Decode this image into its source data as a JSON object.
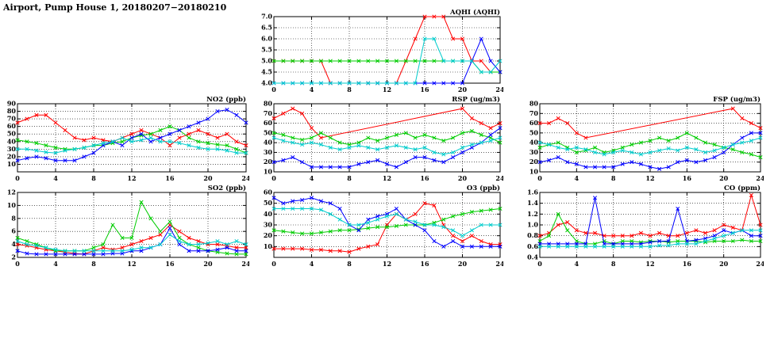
{
  "page": {
    "title": "Airport, Pump House 1, 20180207−20180210"
  },
  "colors": {
    "red": "#ff0000",
    "green": "#00cc00",
    "blue": "#0000ff",
    "cyan": "#00cccc"
  },
  "chart_data": [
    {
      "id": "aqhi",
      "title": "AQHI (AQHI)",
      "type": "line",
      "xlim": [
        0,
        24
      ],
      "xticks": [
        0,
        4,
        8,
        12,
        16,
        20,
        24
      ],
      "ylim": [
        4,
        7
      ],
      "yticks": [
        4,
        4.5,
        5,
        5.5,
        6,
        6.5,
        7
      ],
      "ydec": 1,
      "series": [
        {
          "name": "red",
          "color": "#ff0000",
          "values": [
            5,
            5,
            5,
            5,
            5,
            5,
            4,
            4,
            4,
            4,
            4,
            4,
            4,
            4,
            5,
            6,
            7,
            7,
            7,
            6,
            6,
            5,
            5,
            4.5,
            4.5
          ]
        },
        {
          "name": "green",
          "color": "#00cc00",
          "values": [
            5,
            5,
            5,
            5,
            5,
            5,
            5,
            5,
            5,
            5,
            5,
            5,
            5,
            5,
            5,
            5,
            5,
            5,
            5,
            5,
            5,
            5,
            4.5,
            4.5,
            4.5
          ]
        },
        {
          "name": "blue",
          "color": "#0000ff",
          "values": [
            4,
            4,
            4,
            4,
            4,
            4,
            4,
            4,
            4,
            4,
            4,
            4,
            4,
            4,
            4,
            4,
            4,
            4,
            4,
            4,
            4,
            5,
            6,
            5,
            4.5
          ]
        },
        {
          "name": "cyan",
          "color": "#00cccc",
          "values": [
            4,
            4,
            4,
            4,
            4,
            4,
            4,
            4,
            4,
            4,
            4,
            4,
            4,
            4,
            4,
            4,
            6,
            6,
            5,
            5,
            5,
            5,
            4.5,
            4.5,
            5
          ]
        }
      ]
    },
    {
      "id": "no2",
      "title": "NO2 (ppb)",
      "type": "line",
      "xlim": [
        0,
        24
      ],
      "xticks": [
        0,
        4,
        8,
        12,
        16,
        20,
        24
      ],
      "ylim": [
        0,
        90
      ],
      "yticks": [
        10,
        20,
        30,
        40,
        50,
        60,
        70,
        80,
        90
      ],
      "ydec": 0,
      "series": [
        {
          "name": "red",
          "color": "#ff0000",
          "values": [
            65,
            70,
            75,
            75,
            65,
            55,
            45,
            42,
            45,
            42,
            40,
            45,
            50,
            55,
            50,
            45,
            35,
            45,
            50,
            55,
            50,
            45,
            50,
            40,
            35
          ]
        },
        {
          "name": "green",
          "color": "#00cc00",
          "values": [
            42,
            40,
            38,
            35,
            32,
            30,
            30,
            32,
            35,
            35,
            38,
            40,
            45,
            48,
            50,
            55,
            60,
            55,
            45,
            40,
            38,
            36,
            35,
            30,
            25
          ]
        },
        {
          "name": "blue",
          "color": "#0000ff",
          "values": [
            15,
            18,
            20,
            18,
            15,
            15,
            15,
            20,
            25,
            35,
            40,
            35,
            45,
            50,
            40,
            45,
            50,
            55,
            60,
            65,
            70,
            80,
            82,
            75,
            65
          ]
        },
        {
          "name": "cyan",
          "color": "#00cccc",
          "values": [
            30,
            30,
            28,
            26,
            25,
            28,
            30,
            32,
            35,
            38,
            40,
            45,
            40,
            42,
            45,
            40,
            40,
            38,
            35,
            32,
            30,
            30,
            28,
            25,
            25
          ]
        }
      ]
    },
    {
      "id": "rsp",
      "title": "RSP (ug/m3)",
      "type": "line",
      "xlim": [
        0,
        24
      ],
      "xticks": [
        0,
        4,
        8,
        12,
        16,
        20,
        24
      ],
      "ylim": [
        10,
        80
      ],
      "yticks": [
        10,
        20,
        30,
        40,
        50,
        60,
        70,
        80
      ],
      "ydec": 0,
      "series": [
        {
          "name": "red",
          "color": "#ff0000",
          "values": [
            65,
            70,
            75,
            70,
            55,
            45,
            null,
            null,
            null,
            null,
            null,
            null,
            null,
            null,
            null,
            null,
            null,
            null,
            null,
            null,
            75,
            65,
            60,
            55,
            60
          ]
        },
        {
          "name": "green",
          "color": "#00cc00",
          "values": [
            50,
            48,
            45,
            43,
            45,
            50,
            45,
            40,
            38,
            40,
            45,
            42,
            45,
            48,
            50,
            45,
            48,
            45,
            42,
            45,
            50,
            52,
            48,
            45,
            40
          ]
        },
        {
          "name": "blue",
          "color": "#0000ff",
          "values": [
            20,
            22,
            25,
            20,
            15,
            15,
            15,
            15,
            15,
            18,
            20,
            22,
            18,
            15,
            20,
            25,
            25,
            22,
            20,
            25,
            30,
            35,
            40,
            48,
            55
          ]
        },
        {
          "name": "cyan",
          "color": "#00cccc",
          "values": [
            45,
            42,
            40,
            38,
            40,
            38,
            35,
            33,
            35,
            37,
            35,
            33,
            35,
            37,
            35,
            33,
            35,
            30,
            28,
            30,
            35,
            38,
            40,
            42,
            45
          ]
        }
      ]
    },
    {
      "id": "fsp",
      "title": "FSP (ug/m3)",
      "type": "line",
      "xlim": [
        0,
        24
      ],
      "xticks": [
        0,
        4,
        8,
        12,
        16,
        20,
        24
      ],
      "ylim": [
        10,
        80
      ],
      "yticks": [
        10,
        20,
        30,
        40,
        50,
        60,
        70,
        80
      ],
      "ydec": 0,
      "series": [
        {
          "name": "red",
          "color": "#ff0000",
          "values": [
            60,
            60,
            65,
            60,
            50,
            45,
            null,
            null,
            null,
            null,
            null,
            null,
            null,
            null,
            null,
            null,
            null,
            null,
            null,
            null,
            null,
            75,
            65,
            60,
            55
          ]
        },
        {
          "name": "green",
          "color": "#00cc00",
          "values": [
            35,
            38,
            40,
            35,
            30,
            32,
            35,
            30,
            32,
            35,
            38,
            40,
            42,
            45,
            42,
            45,
            50,
            45,
            40,
            38,
            35,
            33,
            30,
            28,
            25
          ]
        },
        {
          "name": "blue",
          "color": "#0000ff",
          "values": [
            20,
            22,
            25,
            20,
            18,
            15,
            15,
            15,
            15,
            18,
            20,
            18,
            15,
            13,
            15,
            20,
            22,
            20,
            22,
            25,
            30,
            38,
            45,
            50,
            50
          ]
        },
        {
          "name": "cyan",
          "color": "#00cccc",
          "values": [
            40,
            38,
            35,
            33,
            35,
            33,
            30,
            28,
            30,
            32,
            30,
            28,
            30,
            32,
            34,
            32,
            35,
            33,
            30,
            32,
            35,
            38,
            40,
            42,
            45
          ]
        }
      ]
    },
    {
      "id": "so2",
      "title": "SO2 (ppb)",
      "type": "line",
      "xlim": [
        0,
        24
      ],
      "xticks": [
        0,
        4,
        8,
        12,
        16,
        20,
        24
      ],
      "ylim": [
        2,
        12
      ],
      "yticks": [
        2,
        4,
        6,
        8,
        10,
        12
      ],
      "ydec": 0,
      "series": [
        {
          "name": "red",
          "color": "#ff0000",
          "values": [
            4,
            3.8,
            3.5,
            3.2,
            3,
            2.8,
            2.6,
            2.5,
            3,
            3.5,
            3.2,
            3.5,
            4,
            4.5,
            5,
            5.5,
            7,
            6,
            5,
            4.5,
            4,
            4,
            3.8,
            3.5,
            3.5
          ]
        },
        {
          "name": "green",
          "color": "#00cc00",
          "values": [
            5,
            4.5,
            4,
            3.5,
            3,
            3,
            3,
            3,
            3.5,
            4,
            7,
            5,
            5,
            10.5,
            8,
            6,
            7.5,
            5,
            4,
            3.5,
            3,
            2.8,
            2.6,
            2.5,
            2.5
          ]
        },
        {
          "name": "blue",
          "color": "#0000ff",
          "values": [
            3,
            2.6,
            2.5,
            2.5,
            2.5,
            2.5,
            2.5,
            2.5,
            2.5,
            2.5,
            2.6,
            2.6,
            3,
            3,
            3.5,
            4,
            6.5,
            4,
            3,
            3,
            3,
            3.2,
            3.5,
            3,
            3
          ]
        },
        {
          "name": "cyan",
          "color": "#00cccc",
          "values": [
            4.5,
            4,
            3.8,
            3.5,
            3.2,
            3,
            3,
            3,
            3,
            3,
            3,
            3,
            3.2,
            3.5,
            3.5,
            4,
            5.5,
            4.5,
            4,
            4,
            4.2,
            4.5,
            4,
            4.5,
            4
          ]
        }
      ]
    },
    {
      "id": "o3",
      "title": "O3 (ppb)",
      "type": "line",
      "xlim": [
        0,
        24
      ],
      "xticks": [
        0,
        4,
        8,
        12,
        16,
        20,
        24
      ],
      "ylim": [
        0,
        60
      ],
      "yticks": [
        10,
        20,
        30,
        40,
        50,
        60
      ],
      "ydec": 0,
      "series": [
        {
          "name": "red",
          "color": "#ff0000",
          "values": [
            8,
            8,
            8,
            8,
            7,
            7,
            6,
            6,
            5,
            8,
            10,
            12,
            30,
            40,
            35,
            40,
            50,
            48,
            30,
            20,
            15,
            20,
            15,
            12,
            12
          ]
        },
        {
          "name": "green",
          "color": "#00cc00",
          "values": [
            25,
            24,
            23,
            22,
            22,
            23,
            24,
            25,
            25,
            26,
            27,
            28,
            28,
            29,
            30,
            30,
            30,
            32,
            35,
            38,
            40,
            42,
            43,
            44,
            45
          ]
        },
        {
          "name": "blue",
          "color": "#0000ff",
          "values": [
            55,
            50,
            52,
            53,
            55,
            52,
            50,
            45,
            30,
            25,
            35,
            38,
            40,
            45,
            35,
            30,
            25,
            15,
            10,
            15,
            10,
            10,
            10,
            10,
            10
          ]
        },
        {
          "name": "cyan",
          "color": "#00cccc",
          "values": [
            45,
            45,
            45,
            45,
            45,
            44,
            40,
            35,
            30,
            30,
            32,
            35,
            38,
            40,
            35,
            33,
            30,
            30,
            28,
            25,
            20,
            25,
            30,
            30,
            30
          ]
        }
      ]
    },
    {
      "id": "co",
      "title": "CO (ppm)",
      "type": "line",
      "xlim": [
        0,
        24
      ],
      "xticks": [
        0,
        4,
        8,
        12,
        16,
        20,
        24
      ],
      "ylim": [
        0.4,
        1.6
      ],
      "yticks": [
        0.4,
        0.6,
        0.8,
        1.0,
        1.2,
        1.4,
        1.6
      ],
      "ydec": 1,
      "series": [
        {
          "name": "red",
          "color": "#ff0000",
          "values": [
            0.8,
            0.85,
            1.0,
            1.05,
            0.9,
            0.85,
            0.85,
            0.8,
            0.8,
            0.8,
            0.8,
            0.85,
            0.8,
            0.85,
            0.8,
            0.8,
            0.85,
            0.9,
            0.85,
            0.9,
            1.0,
            0.95,
            0.9,
            1.55,
            1.0
          ]
        },
        {
          "name": "green",
          "color": "#00cc00",
          "values": [
            0.7,
            0.8,
            1.2,
            0.9,
            0.7,
            0.65,
            0.65,
            0.7,
            0.65,
            0.7,
            0.7,
            0.68,
            0.7,
            0.7,
            0.68,
            0.7,
            0.7,
            0.7,
            0.68,
            0.7,
            0.7,
            0.7,
            0.72,
            0.7,
            0.7
          ]
        },
        {
          "name": "blue",
          "color": "#0000ff",
          "values": [
            0.65,
            0.65,
            0.65,
            0.65,
            0.65,
            0.65,
            1.5,
            0.65,
            0.65,
            0.65,
            0.65,
            0.65,
            0.68,
            0.7,
            0.7,
            1.3,
            0.7,
            0.72,
            0.75,
            0.8,
            0.9,
            0.85,
            0.9,
            0.8,
            0.8
          ]
        },
        {
          "name": "cyan",
          "color": "#00cccc",
          "values": [
            0.6,
            0.6,
            0.6,
            0.6,
            0.6,
            0.6,
            0.6,
            0.6,
            0.6,
            0.6,
            0.6,
            0.6,
            0.6,
            0.62,
            0.62,
            0.65,
            0.65,
            0.65,
            0.7,
            0.75,
            0.8,
            0.85,
            0.9,
            0.9,
            0.9
          ]
        }
      ]
    }
  ]
}
